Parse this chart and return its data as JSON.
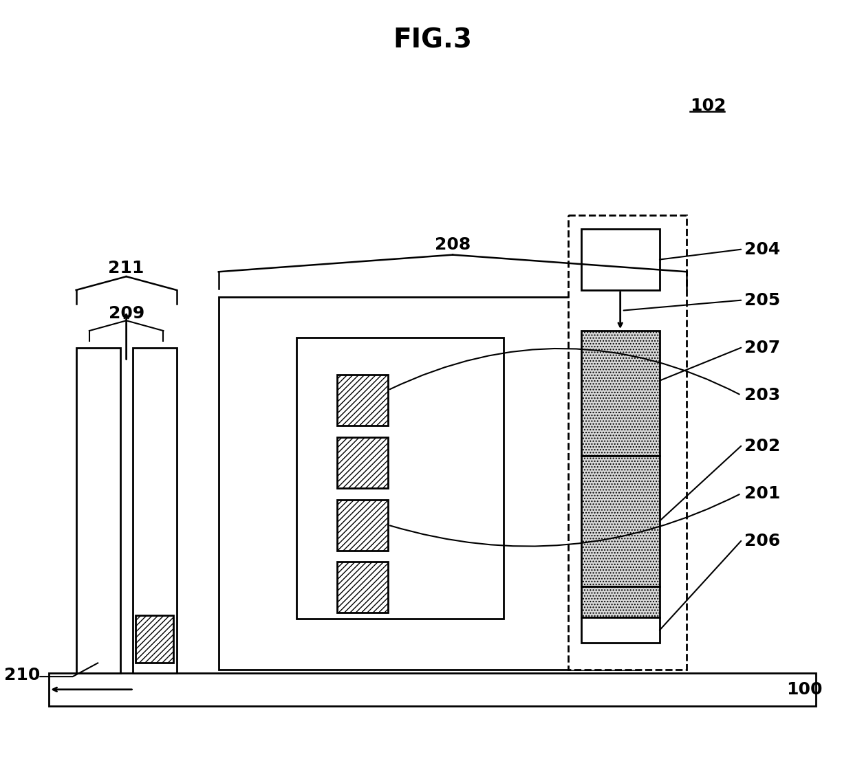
{
  "title": "FIG.3",
  "title_fontsize": 28,
  "label_fontsize": 18,
  "bg_color": "#ffffff",
  "line_color": "#000000",
  "fig_width": 12.4,
  "fig_height": 11.2,
  "dpi": 100
}
